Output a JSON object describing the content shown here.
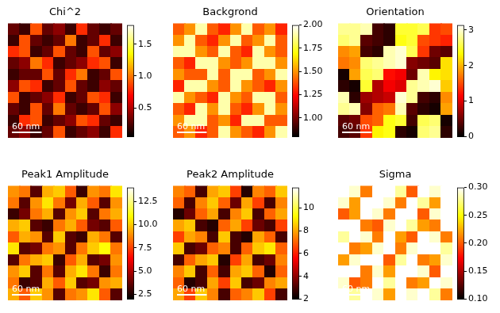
{
  "chart_data": [
    {
      "type": "heatmap",
      "title": "Chi^2",
      "color": "hot",
      "tick_labels": false,
      "scale_bar": "60 nm",
      "cells": [
        [
          0.3,
          0.2,
          0.9,
          0.3,
          0.4,
          0.2,
          0.8,
          0.3,
          0.2,
          0.3
        ],
        [
          0.2,
          0.9,
          0.3,
          0.2,
          0.3,
          1.0,
          0.2,
          0.3,
          0.8,
          0.2
        ],
        [
          0.8,
          0.9,
          0.2,
          0.3,
          0.9,
          0.3,
          0.2,
          0.9,
          0.3,
          0.4
        ],
        [
          0.3,
          0.4,
          1.0,
          0.8,
          0.2,
          0.3,
          0.4,
          0.8,
          0.9,
          0.2
        ],
        [
          0.2,
          0.3,
          0.3,
          0.9,
          0.3,
          0.8,
          1.0,
          0.2,
          0.3,
          0.9
        ],
        [
          0.4,
          0.9,
          0.8,
          0.2,
          0.3,
          0.9,
          0.3,
          0.2,
          0.4,
          0.3
        ],
        [
          0.9,
          0.2,
          0.3,
          0.4,
          0.8,
          0.2,
          0.3,
          0.9,
          0.8,
          0.2
        ],
        [
          0.3,
          0.2,
          0.9,
          0.3,
          1.0,
          0.3,
          0.2,
          0.3,
          0.9,
          0.4
        ],
        [
          0.2,
          0.8,
          0.9,
          0.2,
          0.3,
          0.4,
          0.9,
          0.8,
          0.3,
          0.2
        ],
        [
          0.3,
          0.4,
          0.2,
          0.3,
          0.9,
          0.2,
          0.3,
          0.4,
          0.2,
          0.8
        ]
      ],
      "colorbar": {
        "range": [
          0.05,
          1.8
        ],
        "ticks": [
          0.5,
          {
            "value": 1,
            "label": "1.0"
          },
          1.5
        ]
      }
    },
    {
      "type": "heatmap",
      "title": "Backgrond",
      "color": "hot",
      "tick_labels": false,
      "scale_bar": "60 nm",
      "cells": [
        [
          1.4,
          1.5,
          1.9,
          1.4,
          1.3,
          1.5,
          1.9,
          1.4,
          1.5,
          1.3
        ],
        [
          1.5,
          1.9,
          1.4,
          1.3,
          1.5,
          1.9,
          1.4,
          1.5,
          1.9,
          1.4
        ],
        [
          1.9,
          1.9,
          1.5,
          1.4,
          1.9,
          1.4,
          1.3,
          1.9,
          1.5,
          1.4
        ],
        [
          1.4,
          1.3,
          1.9,
          1.9,
          1.5,
          1.4,
          1.5,
          1.9,
          1.9,
          1.5
        ],
        [
          1.5,
          1.4,
          1.4,
          1.9,
          1.4,
          1.9,
          1.9,
          1.4,
          1.5,
          1.9
        ],
        [
          1.3,
          1.9,
          1.9,
          1.5,
          1.4,
          1.9,
          1.5,
          1.4,
          1.3,
          1.5
        ],
        [
          1.9,
          1.5,
          1.4,
          1.3,
          1.9,
          1.5,
          1.4,
          1.9,
          1.9,
          1.4
        ],
        [
          1.4,
          1.3,
          1.9,
          1.5,
          1.9,
          1.4,
          1.3,
          1.5,
          1.9,
          1.5
        ],
        [
          1.5,
          1.9,
          1.9,
          1.4,
          1.5,
          1.3,
          1.9,
          1.9,
          1.4,
          1.4
        ],
        [
          1.4,
          1.5,
          1.3,
          1.4,
          1.9,
          1.5,
          1.4,
          1.3,
          1.5,
          1.9
        ]
      ],
      "colorbar": {
        "range": [
          0.8,
          2.0
        ],
        "ticks": [
          {
            "value": 1,
            "label": "1.00"
          },
          1.25,
          {
            "value": 1.5,
            "label": "1.50"
          },
          1.75,
          {
            "value": 2,
            "label": "2.00"
          }
        ]
      }
    },
    {
      "type": "heatmap",
      "title": "Orientation",
      "color": "hot",
      "tick_labels": false,
      "scale_bar": "60 nm",
      "cells": [
        [
          2.8,
          2.8,
          2.9,
          0.3,
          0.2,
          2.5,
          2.5,
          2.6,
          1.4,
          1.5
        ],
        [
          2.7,
          2.8,
          0.4,
          0.3,
          0.2,
          2.4,
          2.5,
          1.5,
          1.4,
          1.3
        ],
        [
          1.8,
          1.9,
          0.3,
          0.2,
          2.9,
          3.0,
          2.6,
          1.4,
          0.5,
          0.4
        ],
        [
          1.7,
          1.8,
          2.7,
          2.8,
          2.9,
          3.0,
          0.6,
          0.5,
          0.4,
          2.2
        ],
        [
          0.1,
          1.9,
          2.6,
          2.7,
          1.2,
          1.1,
          0.5,
          2.9,
          2.3,
          2.2
        ],
        [
          0.2,
          0.1,
          2.5,
          0.8,
          1.1,
          1.0,
          2.8,
          2.9,
          3.0,
          2.1
        ],
        [
          2.9,
          0.2,
          0.7,
          0.8,
          0.9,
          3.0,
          2.8,
          0.3,
          0.2,
          1.8
        ],
        [
          2.8,
          2.9,
          0.6,
          1.6,
          1.7,
          2.9,
          0.4,
          0.2,
          0.1,
          1.9
        ],
        [
          0.4,
          0.5,
          1.5,
          1.6,
          2.4,
          2.5,
          0.3,
          2.6,
          2.7,
          0.1
        ],
        [
          0.3,
          0.4,
          1.4,
          2.3,
          2.4,
          0.2,
          0.1,
          2.7,
          2.8,
          0.2
        ]
      ],
      "colorbar": {
        "range": [
          0,
          3.14
        ],
        "ticks": [
          0,
          1,
          2,
          3
        ]
      }
    },
    {
      "type": "heatmap",
      "title": "Peak1 Amplitude",
      "color": "hot",
      "tick_labels": false,
      "scale_bar": "60 nm",
      "cells": [
        [
          9.0,
          8.5,
          3.5,
          9.5,
          10.0,
          8.0,
          3.0,
          9.0,
          8.5,
          10.5
        ],
        [
          8.5,
          3.5,
          9.0,
          10.5,
          8.5,
          4.0,
          9.5,
          8.0,
          3.5,
          9.0
        ],
        [
          3.0,
          4.0,
          8.5,
          9.5,
          3.5,
          9.0,
          10.0,
          3.5,
          8.5,
          9.5
        ],
        [
          9.5,
          10.0,
          3.5,
          3.0,
          8.5,
          9.5,
          8.0,
          4.0,
          3.5,
          8.0
        ],
        [
          8.0,
          9.5,
          9.0,
          3.5,
          10.0,
          3.5,
          3.0,
          9.5,
          8.5,
          3.5
        ],
        [
          10.5,
          3.5,
          4.0,
          8.5,
          9.0,
          3.5,
          8.5,
          10.0,
          11.0,
          8.5
        ],
        [
          3.5,
          8.5,
          9.5,
          10.0,
          3.0,
          8.0,
          9.5,
          3.5,
          4.0,
          9.0
        ],
        [
          9.0,
          10.0,
          3.5,
          8.5,
          3.5,
          9.5,
          10.5,
          8.5,
          3.0,
          8.5
        ],
        [
          8.5,
          3.0,
          3.5,
          9.5,
          8.0,
          10.0,
          3.5,
          4.0,
          9.0,
          9.5
        ],
        [
          9.5,
          8.0,
          10.0,
          9.0,
          3.5,
          8.5,
          9.0,
          10.5,
          8.0,
          3.5
        ]
      ],
      "colorbar": {
        "range": [
          2,
          14
        ],
        "ticks": [
          2.5,
          {
            "value": 5,
            "label": "5.0"
          },
          7.5,
          {
            "value": 10,
            "label": "10.0"
          },
          12.5
        ]
      }
    },
    {
      "type": "heatmap",
      "title": "Peak2 Amplitude",
      "color": "hot",
      "tick_labels": false,
      "scale_bar": "60 nm",
      "cells": [
        [
          7.5,
          7.0,
          3.0,
          8.0,
          8.5,
          6.5,
          2.5,
          7.5,
          7.0,
          8.5
        ],
        [
          7.0,
          3.0,
          7.5,
          8.5,
          7.0,
          3.5,
          8.0,
          6.5,
          3.0,
          7.5
        ],
        [
          2.5,
          3.5,
          7.0,
          8.0,
          3.0,
          7.5,
          8.5,
          3.0,
          7.0,
          8.0
        ],
        [
          8.0,
          8.5,
          3.0,
          2.5,
          7.0,
          8.0,
          6.5,
          3.5,
          3.0,
          6.5
        ],
        [
          6.5,
          8.0,
          7.5,
          3.0,
          8.5,
          3.0,
          2.5,
          8.0,
          7.0,
          3.0
        ],
        [
          8.5,
          3.0,
          3.5,
          7.0,
          7.5,
          3.0,
          7.0,
          8.5,
          9.0,
          7.0
        ],
        [
          3.0,
          7.0,
          8.0,
          8.5,
          2.5,
          6.5,
          8.0,
          3.0,
          3.5,
          7.5
        ],
        [
          7.5,
          8.5,
          3.0,
          7.0,
          3.0,
          8.0,
          8.5,
          7.0,
          2.5,
          7.0
        ],
        [
          7.0,
          2.5,
          3.0,
          8.0,
          6.5,
          8.5,
          3.0,
          3.5,
          7.5,
          8.0
        ],
        [
          8.0,
          6.5,
          8.5,
          7.5,
          3.0,
          7.0,
          7.5,
          8.5,
          6.5,
          3.0
        ]
      ],
      "colorbar": {
        "range": [
          2,
          11.8
        ],
        "ticks": [
          2,
          4,
          6,
          8,
          10
        ]
      }
    },
    {
      "type": "heatmap",
      "title": "Sigma",
      "color": "hot",
      "tick_labels": false,
      "scale_bar": "60 nm",
      "cells": [
        [
          0.3,
          0.29,
          0.21,
          0.3,
          0.3,
          0.28,
          0.2,
          0.3,
          0.29,
          0.3
        ],
        [
          0.29,
          0.22,
          0.3,
          0.3,
          0.29,
          0.21,
          0.3,
          0.28,
          0.22,
          0.3
        ],
        [
          0.2,
          0.22,
          0.3,
          0.29,
          0.21,
          0.3,
          0.3,
          0.2,
          0.29,
          0.3
        ],
        [
          0.3,
          0.3,
          0.21,
          0.2,
          0.29,
          0.3,
          0.28,
          0.22,
          0.21,
          0.3
        ],
        [
          0.28,
          0.3,
          0.29,
          0.21,
          0.3,
          0.22,
          0.2,
          0.3,
          0.29,
          0.21
        ],
        [
          0.3,
          0.21,
          0.22,
          0.29,
          0.3,
          0.21,
          0.29,
          0.3,
          0.3,
          0.28
        ],
        [
          0.22,
          0.29,
          0.3,
          0.3,
          0.2,
          0.28,
          0.3,
          0.21,
          0.22,
          0.29
        ],
        [
          0.3,
          0.3,
          0.21,
          0.29,
          0.22,
          0.3,
          0.3,
          0.29,
          0.2,
          0.3
        ],
        [
          0.29,
          0.2,
          0.21,
          0.3,
          0.28,
          0.3,
          0.21,
          0.22,
          0.3,
          0.29
        ],
        [
          0.3,
          0.28,
          0.3,
          0.29,
          0.22,
          0.3,
          0.29,
          0.3,
          0.28,
          0.21
        ]
      ],
      "colorbar": {
        "range": [
          0.1,
          0.3
        ],
        "ticks": [
          {
            "value": 0.1,
            "label": "0.10"
          },
          0.15,
          {
            "value": 0.2,
            "label": "0.20"
          },
          0.25,
          {
            "value": 0.3,
            "label": "0.30"
          }
        ]
      }
    }
  ]
}
